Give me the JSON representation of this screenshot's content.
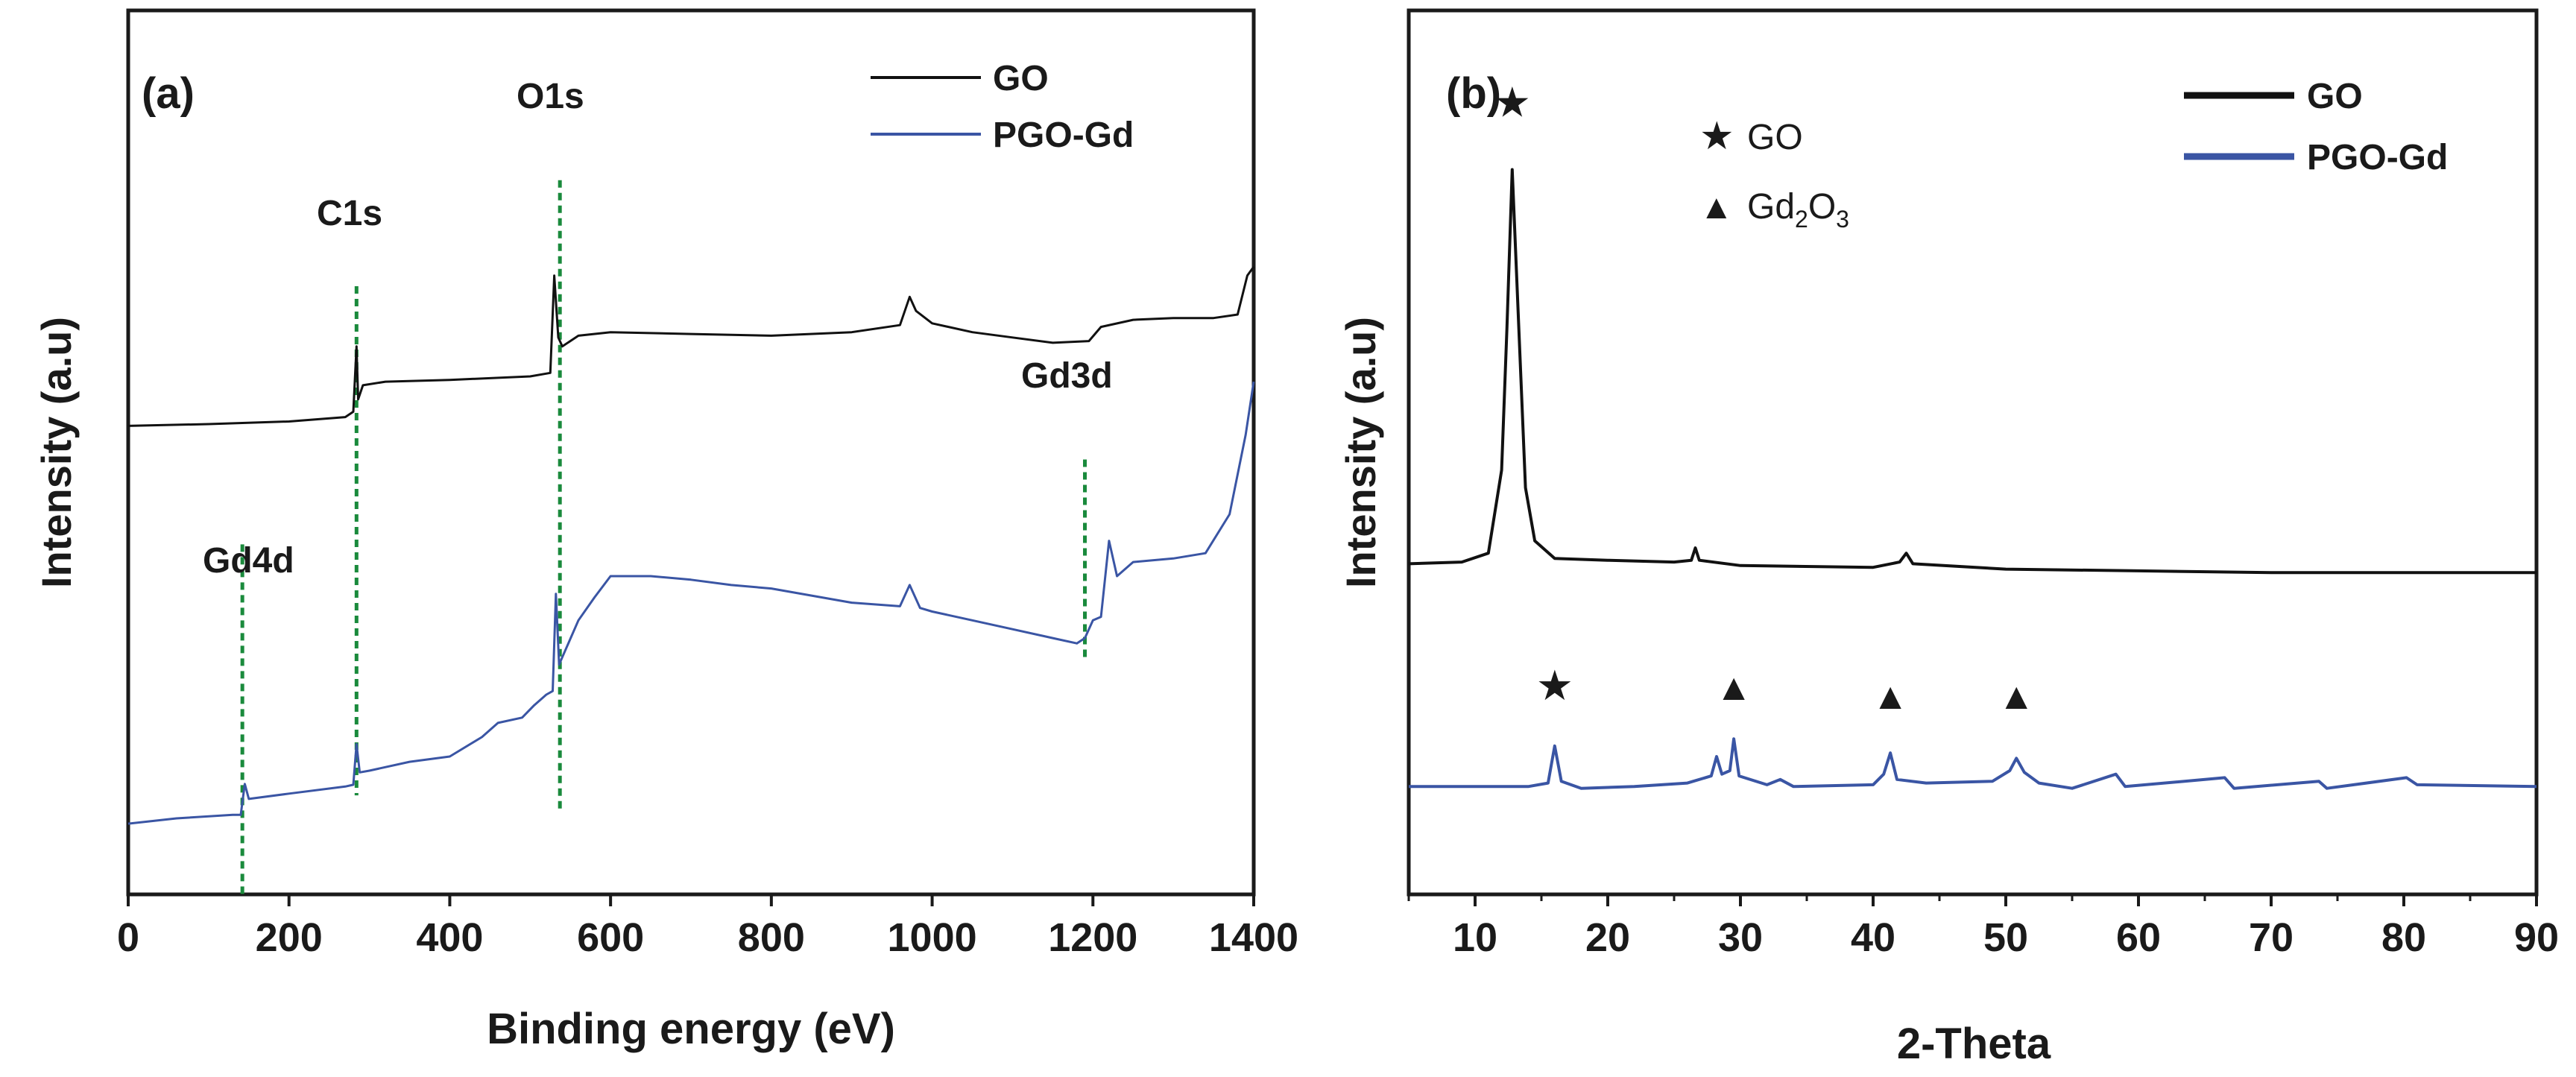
{
  "chart_data": [
    {
      "panel": "a",
      "type": "line",
      "panel_label": "(a)",
      "xlabel": "Binding energy (eV)",
      "ylabel": "Intensity (a.u)",
      "xlim": [
        0,
        1400
      ],
      "ylim": [
        0,
        100
      ],
      "xticks": [
        0,
        200,
        400,
        600,
        800,
        1000,
        1200,
        1400
      ],
      "grid": false,
      "legend": "top-right",
      "series": [
        {
          "name": "GO",
          "color": "#111111",
          "points": [
            [
              0,
              53
            ],
            [
              100,
              53.2
            ],
            [
              200,
              53.5
            ],
            [
              270,
              54
            ],
            [
              280,
              54.6
            ],
            [
              284,
              62
            ],
            [
              286,
              56
            ],
            [
              292,
              57.6
            ],
            [
              320,
              58
            ],
            [
              400,
              58.2
            ],
            [
              500,
              58.6
            ],
            [
              525,
              59
            ],
            [
              530,
              70
            ],
            [
              535,
              63
            ],
            [
              540,
              62
            ],
            [
              560,
              63.2
            ],
            [
              600,
              63.6
            ],
            [
              700,
              63.4
            ],
            [
              800,
              63.2
            ],
            [
              900,
              63.6
            ],
            [
              960,
              64.4
            ],
            [
              972,
              67.6
            ],
            [
              980,
              66
            ],
            [
              1000,
              64.6
            ],
            [
              1050,
              63.6
            ],
            [
              1100,
              63
            ],
            [
              1150,
              62.4
            ],
            [
              1195,
              62.6
            ],
            [
              1210,
              64.2
            ],
            [
              1250,
              65
            ],
            [
              1300,
              65.2
            ],
            [
              1350,
              65.2
            ],
            [
              1380,
              65.6
            ],
            [
              1392,
              70
            ],
            [
              1400,
              71
            ]
          ]
        },
        {
          "name": "PGO-Gd",
          "color": "#3a55a4",
          "points": [
            [
              0,
              8
            ],
            [
              60,
              8.6
            ],
            [
              130,
              9
            ],
            [
              140,
              9
            ],
            [
              145,
              12.5
            ],
            [
              150,
              10.8
            ],
            [
              200,
              11.4
            ],
            [
              270,
              12.2
            ],
            [
              280,
              12.4
            ],
            [
              284,
              17
            ],
            [
              288,
              13.8
            ],
            [
              300,
              14
            ],
            [
              350,
              15
            ],
            [
              400,
              15.6
            ],
            [
              440,
              17.8
            ],
            [
              460,
              19.4
            ],
            [
              490,
              20
            ],
            [
              505,
              21.4
            ],
            [
              520,
              22.6
            ],
            [
              528,
              23
            ],
            [
              532,
              34
            ],
            [
              536,
              26
            ],
            [
              560,
              31
            ],
            [
              580,
              33.6
            ],
            [
              600,
              36
            ],
            [
              650,
              36
            ],
            [
              700,
              35.6
            ],
            [
              750,
              35
            ],
            [
              800,
              34.6
            ],
            [
              850,
              33.8
            ],
            [
              900,
              33
            ],
            [
              960,
              32.6
            ],
            [
              972,
              35
            ],
            [
              985,
              32.4
            ],
            [
              1000,
              32
            ],
            [
              1050,
              31
            ],
            [
              1100,
              30
            ],
            [
              1150,
              29
            ],
            [
              1180,
              28.4
            ],
            [
              1190,
              29
            ],
            [
              1200,
              31
            ],
            [
              1210,
              31.4
            ],
            [
              1220,
              40
            ],
            [
              1230,
              36
            ],
            [
              1250,
              37.6
            ],
            [
              1300,
              38
            ],
            [
              1340,
              38.6
            ],
            [
              1370,
              43
            ],
            [
              1390,
              52
            ],
            [
              1400,
              58
            ]
          ]
        }
      ],
      "markers": [
        {
          "label": "C1s",
          "x": 284,
          "y_top": 68.8,
          "y_bottom": 11.2
        },
        {
          "label": "O1s",
          "x": 537,
          "y_top": 80.8,
          "y_bottom": 9.2
        },
        {
          "label": "Gd4d",
          "x": 142,
          "y_top": 39.6,
          "y_bottom": 0
        },
        {
          "label": "Gd3d",
          "x": 1190,
          "y_top": 49.2,
          "y_bottom": 26.4
        }
      ]
    },
    {
      "panel": "b",
      "type": "line",
      "panel_label": "(b)",
      "xlabel": "2-Theta",
      "ylabel": "Intensity (a.u)",
      "xlim": [
        5,
        90
      ],
      "ylim": [
        0,
        100
      ],
      "xticks": [
        10,
        20,
        30,
        40,
        50,
        60,
        70,
        80,
        90
      ],
      "grid": false,
      "legend": "top-right",
      "series": [
        {
          "name": "GO",
          "color": "#111111",
          "points": [
            [
              5,
              37.4
            ],
            [
              9,
              37.6
            ],
            [
              11,
              38.6
            ],
            [
              12,
              48
            ],
            [
              12.4,
              64
            ],
            [
              12.8,
              82
            ],
            [
              13.3,
              64
            ],
            [
              13.8,
              46
            ],
            [
              14.5,
              40
            ],
            [
              16,
              38
            ],
            [
              20,
              37.8
            ],
            [
              25,
              37.6
            ],
            [
              26.3,
              37.8
            ],
            [
              26.6,
              39.2
            ],
            [
              26.9,
              37.8
            ],
            [
              30,
              37.2
            ],
            [
              40,
              37
            ],
            [
              42,
              37.6
            ],
            [
              42.5,
              38.6
            ],
            [
              43,
              37.4
            ],
            [
              50,
              36.8
            ],
            [
              60,
              36.6
            ],
            [
              70,
              36.4
            ],
            [
              80,
              36.4
            ],
            [
              90,
              36.4
            ]
          ]
        },
        {
          "name": "PGO-Gd",
          "color": "#3a55a4",
          "points": [
            [
              5,
              12.2
            ],
            [
              14,
              12.2
            ],
            [
              15.5,
              12.6
            ],
            [
              16,
              16.8
            ],
            [
              16.5,
              12.8
            ],
            [
              18,
              12
            ],
            [
              22,
              12.2
            ],
            [
              26,
              12.6
            ],
            [
              27.8,
              13.4
            ],
            [
              28.2,
              15.6
            ],
            [
              28.6,
              13.6
            ],
            [
              29.2,
              14
            ],
            [
              29.5,
              17.6
            ],
            [
              29.9,
              13.4
            ],
            [
              32,
              12.4
            ],
            [
              33,
              13
            ],
            [
              34,
              12.2
            ],
            [
              40,
              12.4
            ],
            [
              40.8,
              13.6
            ],
            [
              41.3,
              16
            ],
            [
              41.8,
              13
            ],
            [
              44,
              12.6
            ],
            [
              49,
              12.8
            ],
            [
              50.3,
              14
            ],
            [
              50.8,
              15.4
            ],
            [
              51.4,
              13.8
            ],
            [
              52.5,
              12.6
            ],
            [
              55,
              12
            ],
            [
              58.3,
              13.6
            ],
            [
              59,
              12.2
            ],
            [
              66.5,
              13.2
            ],
            [
              67.2,
              12
            ],
            [
              73.6,
              12.8
            ],
            [
              74.2,
              12
            ],
            [
              80.2,
              13.2
            ],
            [
              81,
              12.4
            ],
            [
              90,
              12.2
            ]
          ]
        }
      ],
      "inset_legend": [
        {
          "symbol": "★",
          "label": "GO"
        },
        {
          "symbol": "▲",
          "label": "Gd",
          "sub1": "2",
          "mid": "O",
          "sub2": "3"
        }
      ],
      "markers": [
        {
          "symbol": "★",
          "x": 12.8,
          "y": 88
        },
        {
          "symbol": "★",
          "x": 16,
          "y": 22
        },
        {
          "symbol": "▲",
          "x": 29.5,
          "y": 22
        },
        {
          "symbol": "▲",
          "x": 41.3,
          "y": 21
        },
        {
          "symbol": "▲",
          "x": 50.8,
          "y": 21
        }
      ]
    }
  ]
}
